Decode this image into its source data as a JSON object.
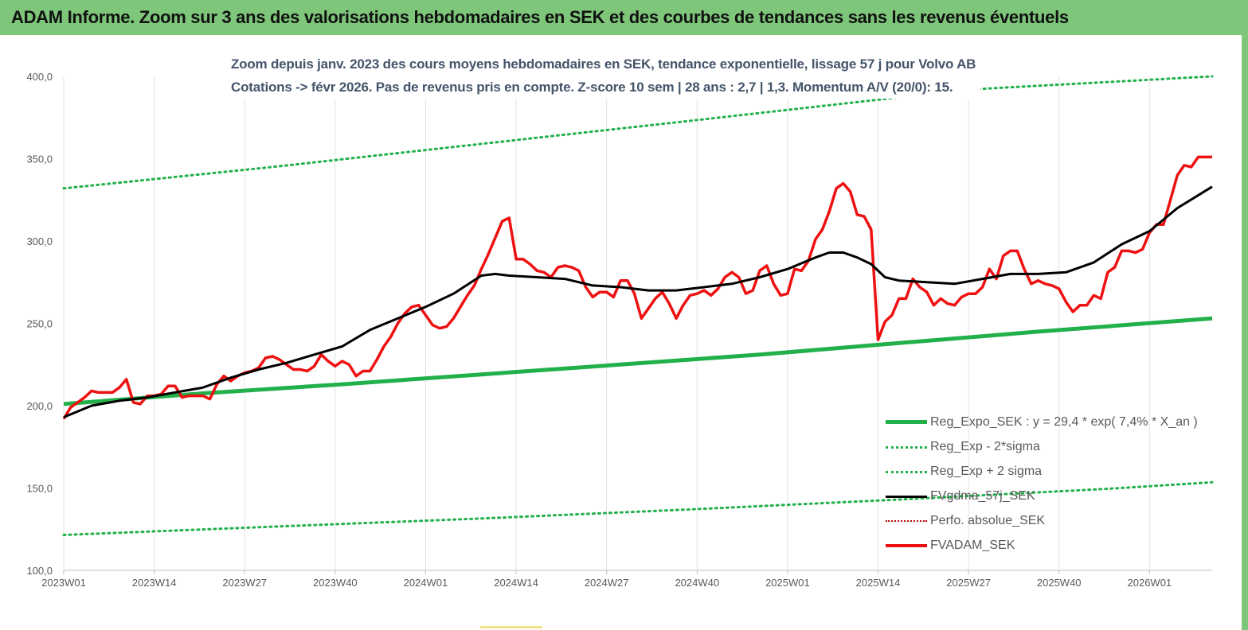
{
  "header": {
    "title": "ADAM Informe. Zoom sur 3 ans des valorisations hebdomadaires en SEK et des courbes de tendances sans les revenus éventuels"
  },
  "chart_data": {
    "type": "line",
    "subtitle_lines": [
      "Zoom depuis janv. 2023 des cours moyens hebdomadaires en SEK, tendance exponentielle, lissage 57 j pour Volvo AB",
      "Cotations -> févr 2026.  Pas de revenus pris en compte. Z-score 10 sem  | 28 ans : 2,7  | 1,3. Momentum A/V (20/0): 15."
    ],
    "ylim": [
      100,
      400
    ],
    "yticks": [
      "100,0",
      "150,0",
      "200,0",
      "250,0",
      "300,0",
      "350,0",
      "400,0"
    ],
    "xlim": [
      0,
      162
    ],
    "xticks": [
      {
        "label": "2023W01",
        "x": 0
      },
      {
        "label": "2023W14",
        "x": 13
      },
      {
        "label": "2023W27",
        "x": 26
      },
      {
        "label": "2023W40",
        "x": 39
      },
      {
        "label": "2024W01",
        "x": 52
      },
      {
        "label": "2024W14",
        "x": 65
      },
      {
        "label": "2024W27",
        "x": 78
      },
      {
        "label": "2024W40",
        "x": 91
      },
      {
        "label": "2025W01",
        "x": 104
      },
      {
        "label": "2025W14",
        "x": 117
      },
      {
        "label": "2025W27",
        "x": 130
      },
      {
        "label": "2025W40",
        "x": 143
      },
      {
        "label": "2026W01",
        "x": 156
      }
    ],
    "grid": "vertical",
    "legend_position": "bottom-right",
    "colors": {
      "regression": "#22b04a",
      "band": "#22b04a",
      "smoothed": "#000000",
      "adam": "#ee1111",
      "perfo": "#c00000",
      "title_bar": "#7dc67a",
      "subtitle": "#44546a"
    },
    "series": [
      {
        "name": "Reg_Expo_SEK : y = 29,4 * exp( 7,4% *  X_an )",
        "style": "thick",
        "x": [
          0,
          20,
          40,
          60,
          80,
          100,
          120,
          140,
          165
        ],
        "values": [
          201,
          207.5,
          213,
          219,
          225,
          231,
          238,
          245,
          253
        ]
      },
      {
        "name": "Reg_Exp - 2*sigma",
        "style": "dotted",
        "x": [
          0,
          30,
          60,
          90,
          120,
          150,
          165
        ],
        "values": [
          121.5,
          126.5,
          131.5,
          137,
          143,
          149.5,
          153.5
        ]
      },
      {
        "name": "Reg_Exp + 2 sigma",
        "style": "dotted",
        "x": [
          0,
          30,
          60,
          90,
          130,
          165
        ],
        "values": [
          332,
          345,
          359,
          373,
          392,
          400
        ]
      },
      {
        "name": "FVgdma_57j_SEK",
        "style": "solid",
        "x": [
          0,
          4,
          8,
          12,
          16,
          20,
          24,
          28,
          32,
          36,
          40,
          44,
          48,
          52,
          56,
          60,
          62,
          64,
          68,
          72,
          76,
          80,
          84,
          88,
          92,
          96,
          100,
          104,
          108,
          110,
          112,
          114,
          116,
          118,
          120,
          124,
          128,
          132,
          136,
          140,
          144,
          148,
          152,
          156,
          160,
          165
        ],
        "values": [
          193,
          200,
          203,
          205,
          208,
          211,
          217,
          222,
          226,
          231,
          236,
          246,
          253,
          260,
          268,
          279,
          280,
          279,
          278,
          277,
          273,
          272,
          270,
          270,
          272,
          274,
          278,
          283,
          290,
          293,
          293,
          290,
          286,
          278,
          276,
          275,
          274,
          277,
          280,
          280,
          281,
          287,
          298,
          306,
          320,
          333
        ]
      },
      {
        "name": "Perfo. absolue_SEK",
        "style": "dotted",
        "x": [],
        "values": []
      },
      {
        "name": "FVADAM_SEK",
        "style": "thick",
        "x": [
          0,
          1,
          2,
          3,
          4,
          5,
          6,
          7,
          8,
          9,
          10,
          11,
          12,
          13,
          14,
          15,
          16,
          17,
          18,
          19,
          20,
          21,
          22,
          23,
          24,
          25,
          26,
          27,
          28,
          29,
          30,
          31,
          32,
          33,
          34,
          35,
          36,
          37,
          38,
          39,
          40,
          41,
          42,
          43,
          44,
          45,
          46,
          47,
          48,
          49,
          50,
          51,
          52,
          53,
          54,
          55,
          56,
          57,
          58,
          59,
          60,
          61,
          62,
          63,
          64,
          65,
          66,
          67,
          68,
          69,
          70,
          71,
          72,
          73,
          74,
          75,
          76,
          77,
          78,
          79,
          80,
          81,
          82,
          83,
          84,
          85,
          86,
          87,
          88,
          89,
          90,
          91,
          92,
          93,
          94,
          95,
          96,
          97,
          98,
          99,
          100,
          101,
          102,
          103,
          104,
          105,
          106,
          107,
          108,
          109,
          110,
          111,
          112,
          113,
          114,
          115,
          116,
          117,
          118,
          119,
          120,
          121,
          122,
          123,
          124,
          125,
          126,
          127,
          128,
          129,
          130,
          131,
          132,
          133,
          134,
          135,
          136,
          137,
          138,
          139,
          140,
          141,
          142,
          143,
          144,
          145,
          146,
          147,
          148,
          149,
          150,
          151,
          152,
          153,
          154,
          155,
          156,
          157,
          158,
          159,
          160,
          161,
          162,
          163,
          164,
          165
        ],
        "values": [
          192,
          199,
          202,
          205,
          209,
          208,
          208,
          208,
          211,
          216,
          202,
          201,
          206,
          206,
          207,
          212,
          212,
          205,
          206,
          206,
          206,
          204,
          213,
          218,
          215,
          218,
          220,
          221,
          223,
          229,
          230,
          228,
          225,
          222,
          222,
          221,
          224,
          231,
          227,
          224,
          227,
          225,
          218,
          221,
          221,
          228,
          236,
          242,
          250,
          256,
          260,
          261,
          255,
          249,
          247,
          248,
          253,
          260,
          267,
          273,
          283,
          292,
          302,
          312,
          314,
          289,
          289,
          286,
          282,
          281,
          278,
          284,
          285,
          284,
          282,
          272,
          266,
          269,
          269,
          266,
          276,
          276,
          268,
          253,
          259,
          265,
          269,
          262,
          253,
          261,
          267,
          268,
          270,
          267,
          271,
          278,
          281,
          278,
          268,
          270,
          282,
          285,
          274,
          267,
          268,
          283,
          282,
          288,
          301,
          307,
          318,
          332,
          335,
          330,
          316,
          315,
          307,
          240,
          251,
          255,
          265,
          265,
          277,
          272,
          269,
          261,
          265,
          262,
          261,
          266,
          268,
          268,
          272,
          283,
          277,
          291,
          294,
          294,
          283,
          274,
          276,
          274,
          273,
          271,
          263,
          257,
          261,
          261,
          267,
          265,
          281,
          284,
          294,
          294,
          293,
          295,
          305,
          310,
          310,
          325,
          340,
          346,
          345,
          351,
          351,
          351
        ]
      }
    ]
  }
}
